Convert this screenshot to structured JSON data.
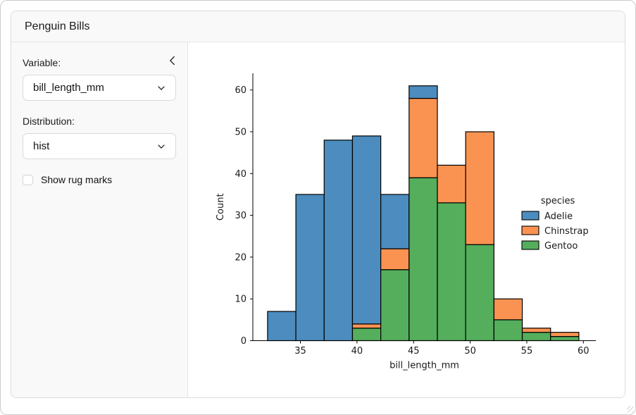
{
  "header": {
    "title": "Penguin Bills"
  },
  "sidebar": {
    "collapse_icon": "chevron-left",
    "variable": {
      "label": "Variable:",
      "value": "bill_length_mm"
    },
    "distribution": {
      "label": "Distribution:",
      "value": "hist"
    },
    "rug": {
      "label": "Show rug marks",
      "checked": false
    }
  },
  "chart_data": {
    "type": "bar",
    "subtype": "stacked-histogram",
    "title": "",
    "xlabel": "bill_length_mm",
    "ylabel": "Count",
    "bin_edges": [
      32.1,
      34.6,
      37.1,
      39.6,
      42.1,
      44.6,
      47.1,
      49.6,
      52.1,
      54.6,
      57.1,
      59.6
    ],
    "series": [
      {
        "name": "Adelie",
        "color": "#4c8cbe",
        "values": [
          7,
          35,
          48,
          45,
          13,
          3,
          0,
          0,
          0,
          0,
          0
        ]
      },
      {
        "name": "Chinstrap",
        "color": "#fa9352",
        "values": [
          0,
          0,
          0,
          1,
          5,
          19,
          9,
          27,
          5,
          1,
          1
        ]
      },
      {
        "name": "Gentoo",
        "color": "#54ae5c",
        "values": [
          0,
          0,
          0,
          3,
          17,
          39,
          33,
          23,
          5,
          2,
          1
        ]
      }
    ],
    "stack_order_bottom_to_top": [
      "Gentoo",
      "Chinstrap",
      "Adelie"
    ],
    "totals_per_bin": [
      7,
      35,
      48,
      49,
      35,
      61,
      42,
      50,
      10,
      3,
      2
    ],
    "xticks": [
      35,
      40,
      45,
      50,
      55,
      60
    ],
    "yticks": [
      0,
      10,
      20,
      30,
      40,
      50,
      60
    ],
    "xlim": [
      30.8,
      61.1
    ],
    "ylim": [
      0,
      64
    ],
    "grid": false,
    "bar_edge_color": "#000000",
    "text_color": "#1a1a1a",
    "legend": {
      "title": "species",
      "position": "center-right",
      "entries": [
        "Adelie",
        "Chinstrap",
        "Gentoo"
      ]
    }
  }
}
